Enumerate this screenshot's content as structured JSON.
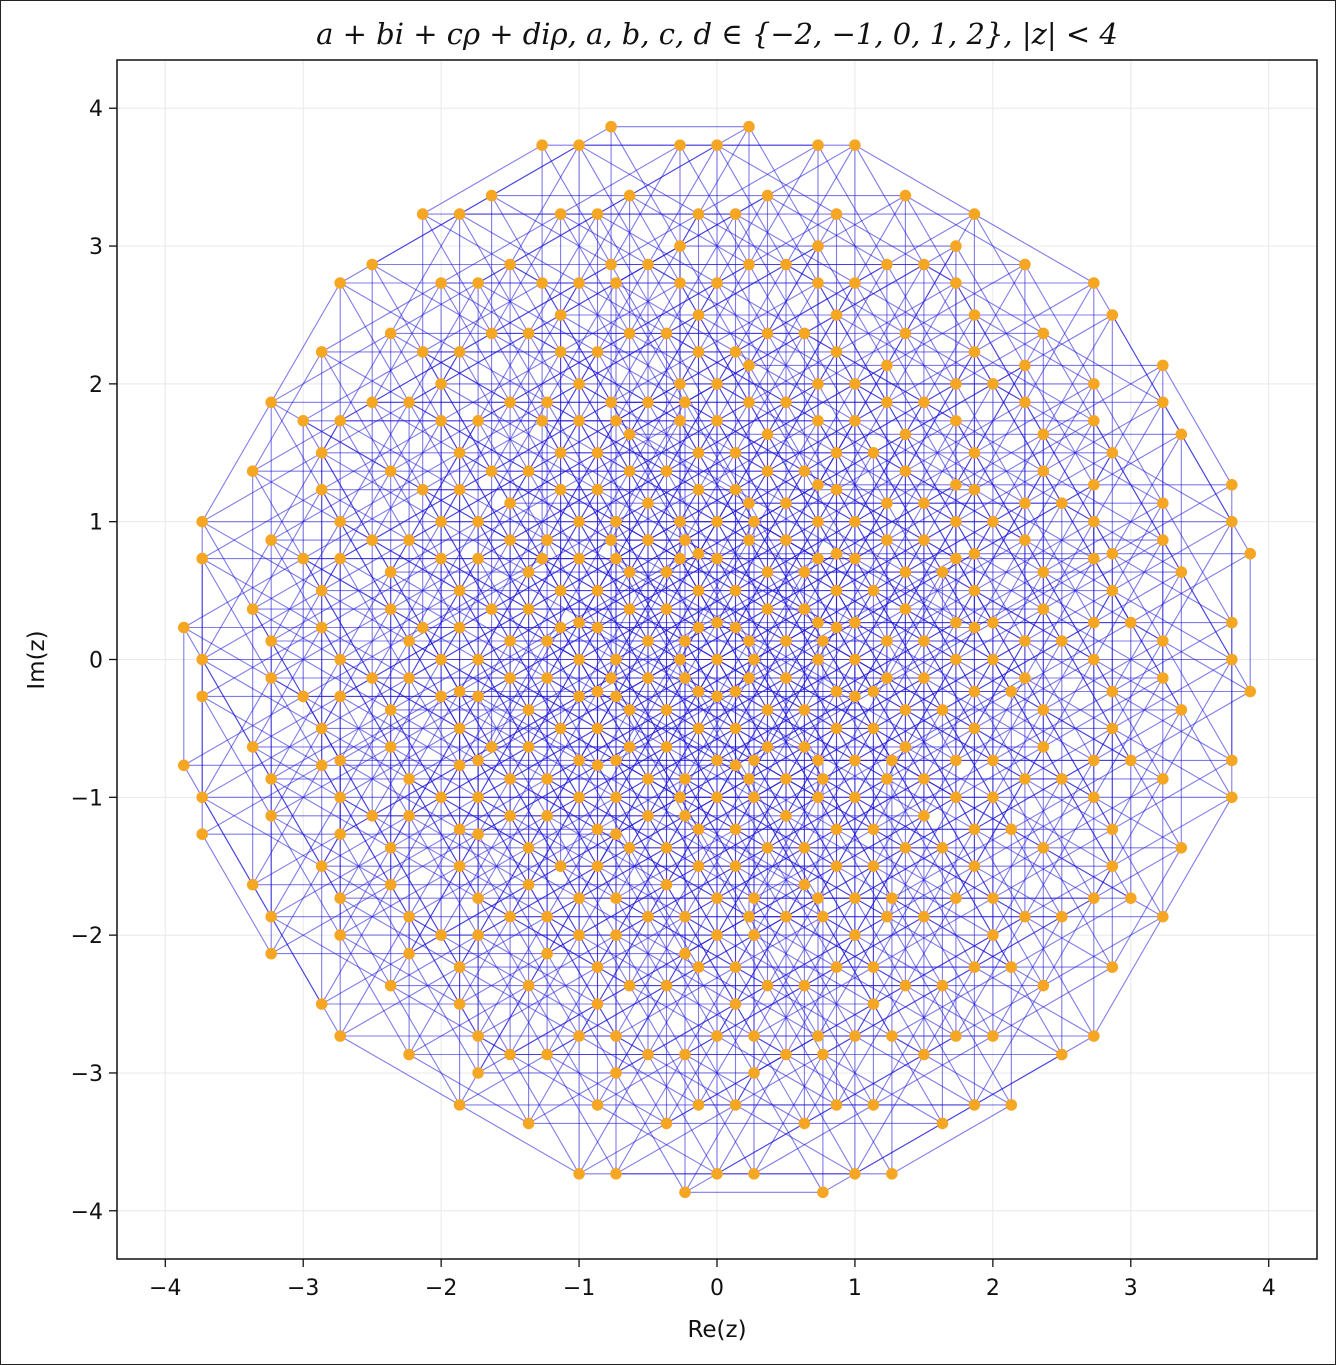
{
  "chart_data": {
    "type": "scatter",
    "title": "a + bi + cρ + diρ, a, b, c, d ∈ {−2, −1, 0, 1, 2}, |z| < 4",
    "xlabel": "Re(z)",
    "ylabel": "Im(z)",
    "xlim": [
      -4.35,
      4.35
    ],
    "ylim": [
      -4.35,
      4.35
    ],
    "xticks": [
      -4,
      -3,
      -2,
      -1,
      0,
      1,
      2,
      3,
      4
    ],
    "yticks": [
      -4,
      -3,
      -2,
      -1,
      0,
      1,
      2,
      3,
      4
    ],
    "xtick_labels": [
      "−4",
      "−3",
      "−2",
      "−1",
      "0",
      "1",
      "2",
      "3",
      "4"
    ],
    "ytick_labels": [
      "−4",
      "−3",
      "−2",
      "−1",
      "0",
      "1",
      "2",
      "3",
      "4"
    ],
    "grid": true,
    "legend": "none",
    "rho": {
      "re": 0.8660254,
      "im": 0.5
    },
    "coefficients": [
      -2,
      -1,
      0,
      1,
      2
    ],
    "radius_limit": 4,
    "series": [
      {
        "kind": "points",
        "color": "#f5a623"
      },
      {
        "kind": "edges",
        "color": "#1a10d8",
        "edge_length": 1
      }
    ]
  }
}
